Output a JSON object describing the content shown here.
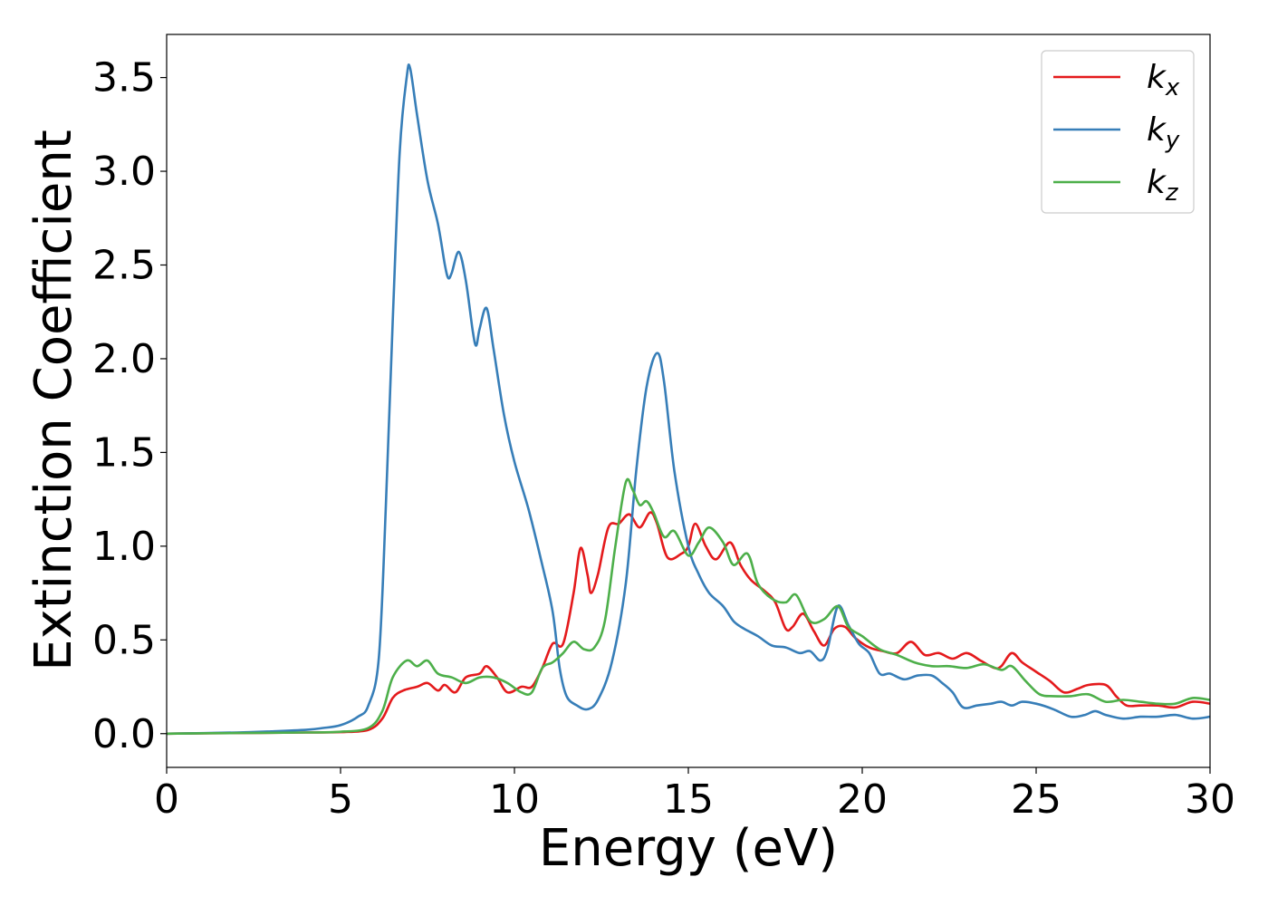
{
  "chart_data": {
    "type": "line",
    "xlabel": "Energy (eV)",
    "ylabel": "Extinction Coefficient",
    "xlim": [
      0,
      30
    ],
    "ylim": [
      -0.18,
      3.73
    ],
    "xticks": [
      0,
      5,
      10,
      15,
      20,
      25,
      30
    ],
    "yticks": [
      0.0,
      0.5,
      1.0,
      1.5,
      2.0,
      2.5,
      3.0,
      3.5
    ],
    "xtick_labels": [
      "0",
      "5",
      "10",
      "15",
      "20",
      "25",
      "30"
    ],
    "ytick_labels": [
      "0.0",
      "0.5",
      "1.0",
      "1.5",
      "2.0",
      "2.5",
      "3.0",
      "3.5"
    ],
    "grid": false,
    "legend_position": "top-right",
    "series": [
      {
        "name": "k_x",
        "label_main": "k",
        "label_sub": "x",
        "color": "#e41a1c",
        "points": [
          [
            0,
            0.0
          ],
          [
            2,
            0.003
          ],
          [
            4,
            0.006
          ],
          [
            5,
            0.008
          ],
          [
            5.8,
            0.02
          ],
          [
            6.2,
            0.08
          ],
          [
            6.5,
            0.19
          ],
          [
            6.8,
            0.23
          ],
          [
            7.2,
            0.25
          ],
          [
            7.5,
            0.27
          ],
          [
            7.8,
            0.23
          ],
          [
            8.0,
            0.26
          ],
          [
            8.3,
            0.22
          ],
          [
            8.6,
            0.3
          ],
          [
            9.0,
            0.32
          ],
          [
            9.2,
            0.36
          ],
          [
            9.5,
            0.3
          ],
          [
            9.8,
            0.22
          ],
          [
            10.2,
            0.25
          ],
          [
            10.5,
            0.25
          ],
          [
            10.8,
            0.35
          ],
          [
            11.1,
            0.48
          ],
          [
            11.4,
            0.48
          ],
          [
            11.7,
            0.75
          ],
          [
            11.9,
            0.99
          ],
          [
            12.1,
            0.85
          ],
          [
            12.2,
            0.75
          ],
          [
            12.4,
            0.85
          ],
          [
            12.7,
            1.1
          ],
          [
            13.0,
            1.12
          ],
          [
            13.3,
            1.17
          ],
          [
            13.6,
            1.1
          ],
          [
            13.9,
            1.18
          ],
          [
            14.1,
            1.12
          ],
          [
            14.4,
            0.94
          ],
          [
            14.8,
            0.96
          ],
          [
            15.0,
            1.0
          ],
          [
            15.2,
            1.12
          ],
          [
            15.5,
            1.0
          ],
          [
            15.8,
            0.93
          ],
          [
            16.2,
            1.02
          ],
          [
            16.5,
            0.9
          ],
          [
            16.8,
            0.82
          ],
          [
            17.2,
            0.76
          ],
          [
            17.5,
            0.7
          ],
          [
            17.8,
            0.56
          ],
          [
            18.0,
            0.57
          ],
          [
            18.3,
            0.64
          ],
          [
            18.6,
            0.55
          ],
          [
            18.9,
            0.47
          ],
          [
            19.2,
            0.56
          ],
          [
            19.5,
            0.57
          ],
          [
            19.8,
            0.51
          ],
          [
            20.2,
            0.46
          ],
          [
            20.6,
            0.44
          ],
          [
            21.0,
            0.43
          ],
          [
            21.4,
            0.49
          ],
          [
            21.8,
            0.42
          ],
          [
            22.2,
            0.43
          ],
          [
            22.6,
            0.4
          ],
          [
            23.0,
            0.43
          ],
          [
            23.4,
            0.39
          ],
          [
            23.8,
            0.35
          ],
          [
            24.0,
            0.36
          ],
          [
            24.3,
            0.43
          ],
          [
            24.6,
            0.38
          ],
          [
            25.0,
            0.33
          ],
          [
            25.4,
            0.28
          ],
          [
            25.8,
            0.22
          ],
          [
            26.2,
            0.24
          ],
          [
            26.5,
            0.26
          ],
          [
            27.0,
            0.26
          ],
          [
            27.3,
            0.2
          ],
          [
            27.6,
            0.15
          ],
          [
            28.0,
            0.15
          ],
          [
            28.5,
            0.15
          ],
          [
            29.0,
            0.14
          ],
          [
            29.5,
            0.17
          ],
          [
            30,
            0.16
          ]
        ]
      },
      {
        "name": "k_y",
        "label_main": "k",
        "label_sub": "y",
        "color": "#377eb8",
        "points": [
          [
            0,
            0.0
          ],
          [
            2,
            0.006
          ],
          [
            3,
            0.012
          ],
          [
            4,
            0.02
          ],
          [
            4.5,
            0.03
          ],
          [
            5,
            0.045
          ],
          [
            5.5,
            0.09
          ],
          [
            5.8,
            0.15
          ],
          [
            6.1,
            0.4
          ],
          [
            6.3,
            1.2
          ],
          [
            6.5,
            2.2
          ],
          [
            6.7,
            3.1
          ],
          [
            6.9,
            3.5
          ],
          [
            7.0,
            3.55
          ],
          [
            7.2,
            3.3
          ],
          [
            7.5,
            2.95
          ],
          [
            7.8,
            2.72
          ],
          [
            8.0,
            2.5
          ],
          [
            8.1,
            2.43
          ],
          [
            8.2,
            2.46
          ],
          [
            8.4,
            2.57
          ],
          [
            8.6,
            2.42
          ],
          [
            8.8,
            2.15
          ],
          [
            8.9,
            2.07
          ],
          [
            9.0,
            2.16
          ],
          [
            9.2,
            2.27
          ],
          [
            9.4,
            2.05
          ],
          [
            9.7,
            1.7
          ],
          [
            10.0,
            1.45
          ],
          [
            10.4,
            1.2
          ],
          [
            10.8,
            0.9
          ],
          [
            11.1,
            0.65
          ],
          [
            11.3,
            0.35
          ],
          [
            11.5,
            0.2
          ],
          [
            11.8,
            0.15
          ],
          [
            12.1,
            0.13
          ],
          [
            12.4,
            0.18
          ],
          [
            12.8,
            0.38
          ],
          [
            13.2,
            0.8
          ],
          [
            13.5,
            1.4
          ],
          [
            13.8,
            1.85
          ],
          [
            14.1,
            2.03
          ],
          [
            14.3,
            1.88
          ],
          [
            14.6,
            1.4
          ],
          [
            15.0,
            1.0
          ],
          [
            15.3,
            0.85
          ],
          [
            15.6,
            0.75
          ],
          [
            16.0,
            0.68
          ],
          [
            16.3,
            0.6
          ],
          [
            16.6,
            0.56
          ],
          [
            17.0,
            0.52
          ],
          [
            17.4,
            0.47
          ],
          [
            17.8,
            0.46
          ],
          [
            18.2,
            0.43
          ],
          [
            18.5,
            0.44
          ],
          [
            18.8,
            0.39
          ],
          [
            19.0,
            0.45
          ],
          [
            19.3,
            0.68
          ],
          [
            19.6,
            0.58
          ],
          [
            19.9,
            0.48
          ],
          [
            20.2,
            0.43
          ],
          [
            20.5,
            0.32
          ],
          [
            20.8,
            0.32
          ],
          [
            21.2,
            0.29
          ],
          [
            21.6,
            0.31
          ],
          [
            22.0,
            0.31
          ],
          [
            22.3,
            0.27
          ],
          [
            22.6,
            0.22
          ],
          [
            22.9,
            0.14
          ],
          [
            23.3,
            0.15
          ],
          [
            23.7,
            0.16
          ],
          [
            24.0,
            0.17
          ],
          [
            24.3,
            0.15
          ],
          [
            24.6,
            0.17
          ],
          [
            25.0,
            0.16
          ],
          [
            25.5,
            0.13
          ],
          [
            26.0,
            0.09
          ],
          [
            26.4,
            0.1
          ],
          [
            26.7,
            0.12
          ],
          [
            27.0,
            0.1
          ],
          [
            27.5,
            0.08
          ],
          [
            28.0,
            0.09
          ],
          [
            28.5,
            0.09
          ],
          [
            29.0,
            0.1
          ],
          [
            29.5,
            0.08
          ],
          [
            30,
            0.09
          ]
        ]
      },
      {
        "name": "k_z",
        "label_main": "k",
        "label_sub": "z",
        "color": "#4daf4a",
        "points": [
          [
            0,
            0.0
          ],
          [
            2,
            0.003
          ],
          [
            4,
            0.006
          ],
          [
            5,
            0.01
          ],
          [
            5.8,
            0.03
          ],
          [
            6.2,
            0.12
          ],
          [
            6.5,
            0.3
          ],
          [
            6.9,
            0.39
          ],
          [
            7.2,
            0.36
          ],
          [
            7.5,
            0.39
          ],
          [
            7.8,
            0.32
          ],
          [
            8.2,
            0.3
          ],
          [
            8.6,
            0.27
          ],
          [
            9.0,
            0.3
          ],
          [
            9.4,
            0.3
          ],
          [
            9.8,
            0.27
          ],
          [
            10.2,
            0.22
          ],
          [
            10.5,
            0.22
          ],
          [
            10.8,
            0.35
          ],
          [
            11.1,
            0.38
          ],
          [
            11.4,
            0.43
          ],
          [
            11.7,
            0.49
          ],
          [
            12.0,
            0.45
          ],
          [
            12.3,
            0.46
          ],
          [
            12.6,
            0.6
          ],
          [
            12.9,
            1.0
          ],
          [
            13.2,
            1.34
          ],
          [
            13.4,
            1.3
          ],
          [
            13.6,
            1.22
          ],
          [
            13.8,
            1.24
          ],
          [
            14.0,
            1.18
          ],
          [
            14.3,
            1.05
          ],
          [
            14.6,
            1.08
          ],
          [
            15.0,
            0.95
          ],
          [
            15.3,
            1.02
          ],
          [
            15.6,
            1.1
          ],
          [
            16.0,
            1.02
          ],
          [
            16.3,
            0.9
          ],
          [
            16.7,
            0.96
          ],
          [
            17.0,
            0.8
          ],
          [
            17.4,
            0.72
          ],
          [
            17.8,
            0.7
          ],
          [
            18.1,
            0.74
          ],
          [
            18.5,
            0.6
          ],
          [
            18.9,
            0.61
          ],
          [
            19.3,
            0.68
          ],
          [
            19.6,
            0.57
          ],
          [
            20.0,
            0.52
          ],
          [
            20.5,
            0.45
          ],
          [
            21.0,
            0.42
          ],
          [
            21.5,
            0.38
          ],
          [
            22.0,
            0.36
          ],
          [
            22.5,
            0.36
          ],
          [
            23.0,
            0.35
          ],
          [
            23.5,
            0.37
          ],
          [
            24.0,
            0.34
          ],
          [
            24.3,
            0.36
          ],
          [
            24.7,
            0.28
          ],
          [
            25.1,
            0.21
          ],
          [
            25.5,
            0.2
          ],
          [
            26.0,
            0.2
          ],
          [
            26.5,
            0.21
          ],
          [
            27.0,
            0.17
          ],
          [
            27.5,
            0.18
          ],
          [
            28.0,
            0.17
          ],
          [
            28.5,
            0.16
          ],
          [
            29.0,
            0.16
          ],
          [
            29.5,
            0.19
          ],
          [
            30,
            0.18
          ]
        ]
      }
    ]
  }
}
